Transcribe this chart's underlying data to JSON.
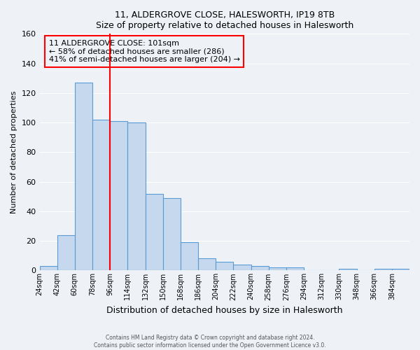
{
  "title": "11, ALDERGROVE CLOSE, HALESWORTH, IP19 8TB",
  "subtitle": "Size of property relative to detached houses in Halesworth",
  "xlabel": "Distribution of detached houses by size in Halesworth",
  "ylabel": "Number of detached properties",
  "bar_labels": [
    "24sqm",
    "42sqm",
    "60sqm",
    "78sqm",
    "96sqm",
    "114sqm",
    "132sqm",
    "150sqm",
    "168sqm",
    "186sqm",
    "204sqm",
    "222sqm",
    "240sqm",
    "258sqm",
    "276sqm",
    "294sqm",
    "312sqm",
    "330sqm",
    "348sqm",
    "366sqm",
    "384sqm"
  ],
  "bar_heights": [
    3,
    24,
    127,
    102,
    101,
    100,
    52,
    49,
    19,
    8,
    6,
    4,
    3,
    2,
    2,
    0,
    0,
    1,
    0,
    1,
    1
  ],
  "bar_color": "#c5d8ed",
  "bar_edge_color": "#5b9bd5",
  "ylim": [
    0,
    160
  ],
  "yticks": [
    0,
    20,
    40,
    60,
    80,
    100,
    120,
    140,
    160
  ],
  "red_line_x": 96,
  "annotation_line1": "11 ALDERGROVE CLOSE: 101sqm",
  "annotation_line2": "← 58% of detached houses are smaller (286)",
  "annotation_line3": "41% of semi-detached houses are larger (204) →",
  "footer_line1": "Contains HM Land Registry data © Crown copyright and database right 2024.",
  "footer_line2": "Contains public sector information licensed under the Open Government Licence v3.0.",
  "background_color": "#eef2f7",
  "grid_color": "#ffffff",
  "bin_width": 18
}
